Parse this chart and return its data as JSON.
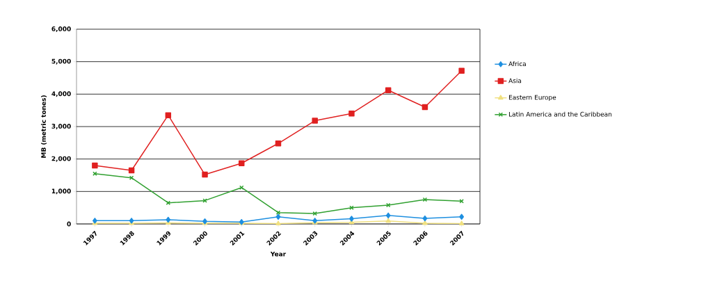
{
  "chart_data": {
    "type": "line",
    "xlabel": "Year",
    "ylabel": "MB (metric tones)",
    "categories": [
      "1997",
      "1998",
      "1999",
      "2000",
      "2001",
      "2002",
      "2003",
      "2004",
      "2005",
      "2006",
      "2007"
    ],
    "ylim": [
      0,
      6000
    ],
    "yticks": [
      {
        "value": 0,
        "label": "0"
      },
      {
        "value": 1000,
        "label": "1,000"
      },
      {
        "value": 2000,
        "label": "2,000"
      },
      {
        "value": 3000,
        "label": "3,000"
      },
      {
        "value": 4000,
        "label": "4,000"
      },
      {
        "value": 5000,
        "label": "5,000"
      },
      {
        "value": 6000,
        "label": "6,000"
      }
    ],
    "grid": "y",
    "legend": "right",
    "line_style": "solid",
    "series": [
      {
        "name": "Africa",
        "color": "#1e8fe0",
        "marker": "diamond",
        "values": [
          100,
          100,
          130,
          80,
          60,
          220,
          100,
          160,
          260,
          170,
          220
        ]
      },
      {
        "name": "Asia",
        "color": "#e02020",
        "marker": "square",
        "values": [
          1800,
          1650,
          3350,
          1520,
          1870,
          2480,
          3180,
          3400,
          4120,
          3600,
          4720
        ]
      },
      {
        "name": "Eastern Europe",
        "color": "#f0e080",
        "marker": "triangle",
        "values": [
          20,
          20,
          30,
          20,
          20,
          10,
          40,
          50,
          90,
          20,
          10
        ]
      },
      {
        "name": "Latin America and the Caribbean",
        "color": "#30a030",
        "marker": "cross",
        "values": [
          1550,
          1420,
          650,
          720,
          1120,
          350,
          320,
          500,
          580,
          750,
          700
        ]
      }
    ]
  }
}
